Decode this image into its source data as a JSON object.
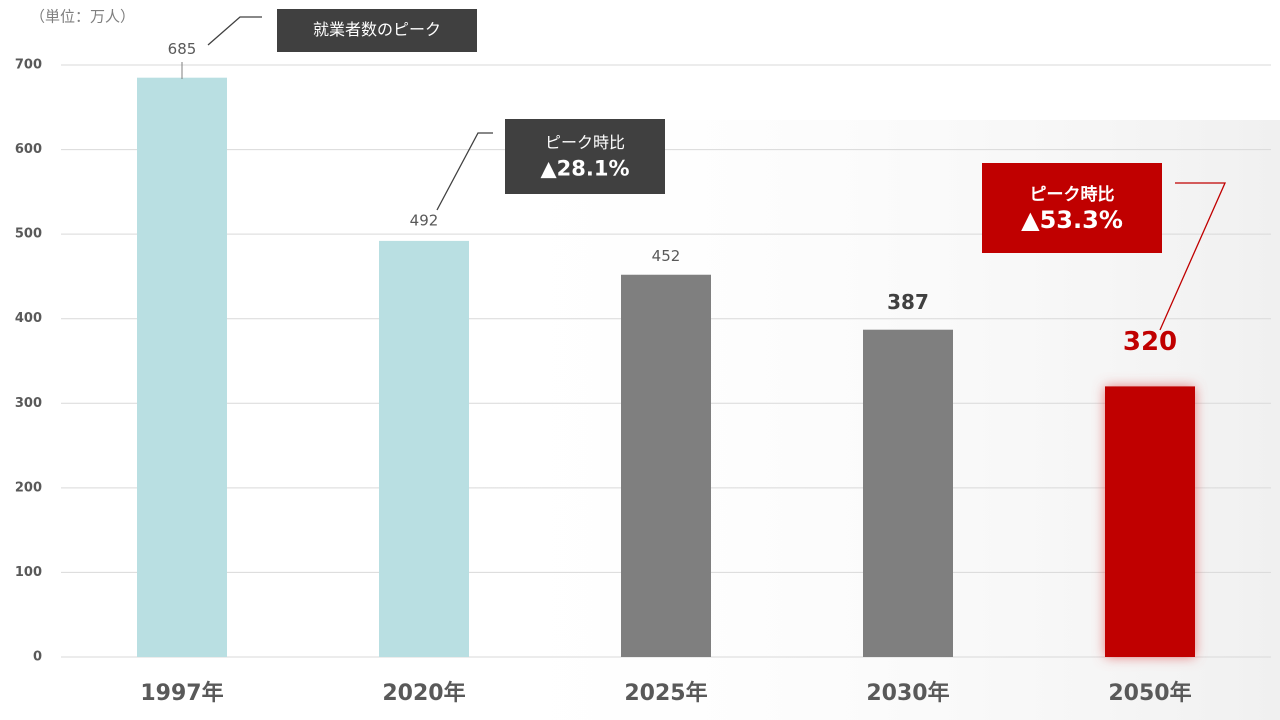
{
  "chart_data": {
    "type": "bar",
    "unit_label": "（単位：万人）",
    "categories": [
      "1997年",
      "2020年",
      "2025年",
      "2030年",
      "2050年"
    ],
    "values": [
      685,
      492,
      452,
      387,
      320
    ],
    "colors": [
      "#b9dfe2",
      "#b9dfe2",
      "#7f7f7f",
      "#7f7f7f",
      "#c00000"
    ],
    "ylim": [
      0,
      700
    ],
    "yticks": [
      0,
      100,
      200,
      300,
      400,
      500,
      600,
      700
    ],
    "grid": true,
    "annotations": [
      {
        "lines": [
          "就業者数のピーク"
        ]
      },
      {
        "lines": [
          "ピーク時比",
          "▲28.1%"
        ]
      },
      {
        "lines": [
          "ピーク時比",
          "▲53.3%"
        ]
      }
    ]
  }
}
